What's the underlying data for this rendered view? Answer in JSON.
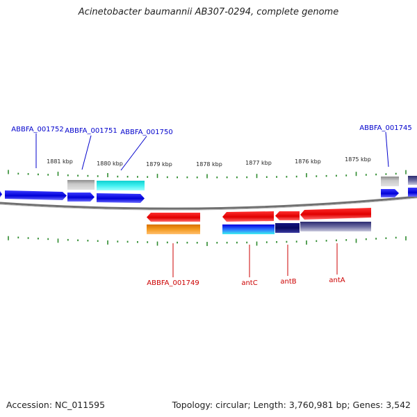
{
  "title": "Acinetobacter baumannii AB307-0294, complete genome",
  "footer": {
    "accession": "Accession: NC_011595",
    "summary": "Topology: circular; Length: 3,760,981 bp; Genes: 3,542"
  },
  "scale": {
    "unit": "kbp",
    "ticks": [
      {
        "label": "1881 kbp"
      },
      {
        "label": "1880 kbp"
      },
      {
        "label": "1879 kbp"
      },
      {
        "label": "1878 kbp"
      },
      {
        "label": "1877 kbp"
      },
      {
        "label": "1876 kbp"
      },
      {
        "label": "1875 kbp"
      }
    ]
  },
  "genes_top": [
    {
      "name": "ABBFA_001752",
      "color": "#0000cc"
    },
    {
      "name": "ABBFA_001751",
      "color": "#0000cc"
    },
    {
      "name": "ABBFA_001750",
      "color": "#0000cc"
    },
    {
      "name": "ABBFA_001745",
      "color": "#0000cc"
    }
  ],
  "genes_bottom": [
    {
      "name": "ABBFA_001749",
      "color": "#cc0000"
    },
    {
      "name": "antC",
      "color": "#cc0000"
    },
    {
      "name": "antB",
      "color": "#cc0000"
    },
    {
      "name": "antA",
      "color": "#cc0000"
    }
  ],
  "colors": {
    "forward_strand": "#0a0af0",
    "reverse_strand": "#f01010",
    "backbone": "#707070",
    "tick": "#2e8b2e",
    "cog_gray": "#b4b4b4",
    "cog_cyan": "#22e0e0",
    "cog_orange": "#f08a00",
    "cog_navy": "#101070",
    "cog_slate": "#50508a"
  }
}
